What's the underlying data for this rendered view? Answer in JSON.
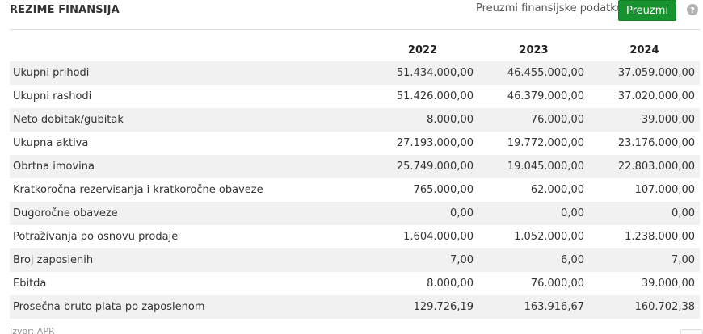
{
  "header": {
    "title": "REZIME FINANSIJA",
    "download_label": "Preuzmi finansijske podatke",
    "download_button": "Preuzmi",
    "help_icon": "question-circle-icon"
  },
  "table": {
    "years": [
      "2022",
      "2023",
      "2024"
    ],
    "rows": [
      {
        "label": "Ukupni prihodi",
        "values": [
          "51.434.000,00",
          "46.455.000,00",
          "37.059.000,00"
        ]
      },
      {
        "label": "Ukupni rashodi",
        "values": [
          "51.426.000,00",
          "46.379.000,00",
          "37.020.000,00"
        ]
      },
      {
        "label": "Neto dobitak/gubitak",
        "values": [
          "8.000,00",
          "76.000,00",
          "39.000,00"
        ]
      },
      {
        "label": "Ukupna aktiva",
        "values": [
          "27.193.000,00",
          "19.772.000,00",
          "23.176.000,00"
        ]
      },
      {
        "label": "Obrtna imovina",
        "values": [
          "25.749.000,00",
          "19.045.000,00",
          "22.803.000,00"
        ]
      },
      {
        "label": "Kratkoročna rezervisanja i kratkoročne obaveze",
        "values": [
          "765.000,00",
          "62.000,00",
          "107.000,00"
        ]
      },
      {
        "label": "Dugoročne obaveze",
        "values": [
          "0,00",
          "0,00",
          "0,00"
        ]
      },
      {
        "label": "Potraživanja po osnovu prodaje",
        "values": [
          "1.604.000,00",
          "1.052.000,00",
          "1.238.000,00"
        ]
      },
      {
        "label": "Broj zaposlenih",
        "values": [
          "7,00",
          "6,00",
          "7,00"
        ]
      },
      {
        "label": "Ebitda",
        "values": [
          "8.000,00",
          "76.000,00",
          "39.000,00"
        ]
      },
      {
        "label": "Prosečna bruto plata po zaposlenom",
        "values": [
          "129.726,19",
          "163.916,67",
          "160.702,38"
        ]
      }
    ]
  },
  "footer": {
    "note": "Izvor: APR"
  }
}
